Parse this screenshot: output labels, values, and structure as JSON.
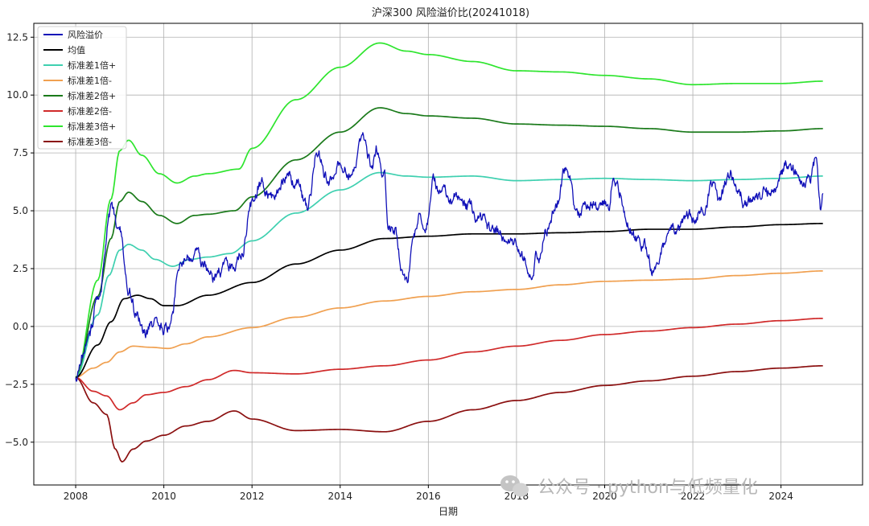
{
  "chart_data": {
    "type": "line",
    "title": "沪深300 风险溢价比(20241018)",
    "xlabel": "日期",
    "ylabel": "",
    "xlim": [
      2007.05,
      2025.85
    ],
    "ylim": [
      -6.85,
      13.1
    ],
    "x_ticks": [
      2008,
      2010,
      2012,
      2014,
      2016,
      2018,
      2020,
      2022,
      2024
    ],
    "x_tick_labels": [
      "2008",
      "2010",
      "2012",
      "2014",
      "2016",
      "2018",
      "2020",
      "2022",
      "2024"
    ],
    "y_ticks": [
      -5.0,
      -2.5,
      0.0,
      2.5,
      5.0,
      7.5,
      10.0,
      12.5
    ],
    "y_tick_labels": [
      "−5.0",
      "−2.5",
      "0.0",
      "2.5",
      "5.0",
      "7.5",
      "10.0",
      "12.5"
    ],
    "grid": true,
    "legend_position": "top-left",
    "series": [
      {
        "name": "风险溢价",
        "color": "#1010b8",
        "kind": "noisy",
        "points": [
          [
            2008.0,
            -2.2
          ],
          [
            2008.3,
            -0.5
          ],
          [
            2008.55,
            1.5
          ],
          [
            2008.8,
            4.9
          ],
          [
            2009.0,
            4.2
          ],
          [
            2009.2,
            1.8
          ],
          [
            2009.4,
            0.5
          ],
          [
            2009.55,
            -0.3
          ],
          [
            2009.75,
            0.0
          ],
          [
            2010.0,
            -0.2
          ],
          [
            2010.2,
            0.4
          ],
          [
            2010.35,
            2.7
          ],
          [
            2010.55,
            3.1
          ],
          [
            2010.75,
            3.4
          ],
          [
            2010.9,
            2.8
          ],
          [
            2011.1,
            2.2
          ],
          [
            2011.5,
            2.7
          ],
          [
            2011.75,
            3.2
          ],
          [
            2012.0,
            5.3
          ],
          [
            2012.2,
            6.2
          ],
          [
            2012.5,
            5.6
          ],
          [
            2012.75,
            6.5
          ],
          [
            2013.0,
            6.2
          ],
          [
            2013.25,
            5.1
          ],
          [
            2013.5,
            7.5
          ],
          [
            2013.75,
            6.3
          ],
          [
            2014.0,
            7.2
          ],
          [
            2014.25,
            6.8
          ],
          [
            2014.5,
            8.2
          ],
          [
            2014.7,
            6.9
          ],
          [
            2014.85,
            7.6
          ],
          [
            2015.0,
            6.5
          ],
          [
            2015.1,
            4.5
          ],
          [
            2015.25,
            4.3
          ],
          [
            2015.4,
            2.5
          ],
          [
            2015.5,
            1.8
          ],
          [
            2015.65,
            3.4
          ],
          [
            2015.8,
            4.6
          ],
          [
            2015.9,
            4.0
          ],
          [
            2016.0,
            4.8
          ],
          [
            2016.1,
            6.3
          ],
          [
            2016.3,
            5.9
          ],
          [
            2016.6,
            5.6
          ],
          [
            2016.9,
            5.1
          ],
          [
            2017.2,
            4.5
          ],
          [
            2017.5,
            4.2
          ],
          [
            2017.8,
            3.6
          ],
          [
            2018.0,
            3.2
          ],
          [
            2018.2,
            2.8
          ],
          [
            2018.35,
            2.4
          ],
          [
            2018.5,
            3.2
          ],
          [
            2018.7,
            4.3
          ],
          [
            2018.9,
            5.2
          ],
          [
            2019.1,
            6.6
          ],
          [
            2019.2,
            5.9
          ],
          [
            2019.4,
            4.7
          ],
          [
            2019.6,
            5.1
          ],
          [
            2019.8,
            5.1
          ],
          [
            2020.0,
            5.3
          ],
          [
            2020.1,
            5.0
          ],
          [
            2020.2,
            6.7
          ],
          [
            2020.35,
            5.8
          ],
          [
            2020.5,
            4.8
          ],
          [
            2020.7,
            3.8
          ],
          [
            2020.9,
            3.5
          ],
          [
            2021.1,
            2.6
          ],
          [
            2021.3,
            3.4
          ],
          [
            2021.6,
            4.2
          ],
          [
            2021.9,
            4.8
          ],
          [
            2022.0,
            4.4
          ],
          [
            2022.2,
            5.2
          ],
          [
            2022.45,
            6.0
          ],
          [
            2022.6,
            5.4
          ],
          [
            2022.85,
            6.8
          ],
          [
            2023.0,
            5.8
          ],
          [
            2023.2,
            5.3
          ],
          [
            2023.45,
            5.4
          ],
          [
            2023.65,
            5.7
          ],
          [
            2023.85,
            6.1
          ],
          [
            2024.1,
            6.9
          ],
          [
            2024.25,
            6.6
          ],
          [
            2024.45,
            6.2
          ],
          [
            2024.65,
            6.4
          ],
          [
            2024.8,
            7.2
          ],
          [
            2024.9,
            5.1
          ],
          [
            2024.95,
            5.8
          ]
        ]
      },
      {
        "name": "均值",
        "color": "#000000",
        "kind": "smooth",
        "points": [
          [
            2008.0,
            -2.2
          ],
          [
            2008.5,
            -0.8
          ],
          [
            2008.8,
            0.2
          ],
          [
            2009.1,
            1.2
          ],
          [
            2009.4,
            1.35
          ],
          [
            2009.7,
            1.2
          ],
          [
            2010.0,
            0.9
          ],
          [
            2010.3,
            0.9
          ],
          [
            2011.0,
            1.35
          ],
          [
            2012.0,
            1.9
          ],
          [
            2013.0,
            2.7
          ],
          [
            2014.0,
            3.3
          ],
          [
            2015.0,
            3.8
          ],
          [
            2016.0,
            3.9
          ],
          [
            2017.0,
            4.0
          ],
          [
            2018.0,
            4.0
          ],
          [
            2019.0,
            4.05
          ],
          [
            2020.0,
            4.1
          ],
          [
            2021.0,
            4.2
          ],
          [
            2022.0,
            4.2
          ],
          [
            2023.0,
            4.3
          ],
          [
            2024.0,
            4.4
          ],
          [
            2024.95,
            4.45
          ]
        ]
      },
      {
        "name": "标准差1倍+",
        "color": "#3fd0b0",
        "kind": "smooth",
        "points": [
          [
            2008.0,
            -2.2
          ],
          [
            2008.5,
            0.5
          ],
          [
            2008.75,
            2.2
          ],
          [
            2009.0,
            3.3
          ],
          [
            2009.2,
            3.55
          ],
          [
            2009.5,
            3.3
          ],
          [
            2009.8,
            2.9
          ],
          [
            2010.2,
            2.6
          ],
          [
            2010.6,
            2.9
          ],
          [
            2011.0,
            3.0
          ],
          [
            2011.5,
            3.15
          ],
          [
            2012.0,
            3.7
          ],
          [
            2013.0,
            4.9
          ],
          [
            2014.0,
            5.9
          ],
          [
            2014.9,
            6.65
          ],
          [
            2015.5,
            6.5
          ],
          [
            2016.0,
            6.45
          ],
          [
            2017.0,
            6.5
          ],
          [
            2018.0,
            6.3
          ],
          [
            2019.0,
            6.35
          ],
          [
            2020.0,
            6.4
          ],
          [
            2021.0,
            6.35
          ],
          [
            2022.0,
            6.3
          ],
          [
            2023.0,
            6.35
          ],
          [
            2024.0,
            6.4
          ],
          [
            2024.95,
            6.5
          ]
        ]
      },
      {
        "name": "标准差1倍-",
        "color": "#f0a050",
        "kind": "smooth",
        "points": [
          [
            2008.0,
            -2.2
          ],
          [
            2008.4,
            -1.8
          ],
          [
            2008.7,
            -1.55
          ],
          [
            2009.0,
            -1.1
          ],
          [
            2009.3,
            -0.85
          ],
          [
            2009.7,
            -0.9
          ],
          [
            2010.1,
            -0.95
          ],
          [
            2010.5,
            -0.75
          ],
          [
            2011.0,
            -0.45
          ],
          [
            2012.0,
            -0.05
          ],
          [
            2013.0,
            0.4
          ],
          [
            2014.0,
            0.8
          ],
          [
            2015.0,
            1.1
          ],
          [
            2016.0,
            1.3
          ],
          [
            2017.0,
            1.5
          ],
          [
            2018.0,
            1.6
          ],
          [
            2019.0,
            1.8
          ],
          [
            2020.0,
            1.95
          ],
          [
            2021.0,
            2.0
          ],
          [
            2022.0,
            2.05
          ],
          [
            2023.0,
            2.2
          ],
          [
            2024.0,
            2.3
          ],
          [
            2024.95,
            2.4
          ]
        ]
      },
      {
        "name": "标准差2倍+",
        "color": "#1a7a1a",
        "kind": "smooth",
        "points": [
          [
            2008.0,
            -2.2
          ],
          [
            2008.5,
            1.3
          ],
          [
            2008.8,
            3.8
          ],
          [
            2009.0,
            5.4
          ],
          [
            2009.2,
            5.8
          ],
          [
            2009.5,
            5.4
          ],
          [
            2009.9,
            4.8
          ],
          [
            2010.3,
            4.45
          ],
          [
            2010.7,
            4.8
          ],
          [
            2011.0,
            4.85
          ],
          [
            2011.6,
            5.0
          ],
          [
            2012.0,
            5.6
          ],
          [
            2013.0,
            7.2
          ],
          [
            2014.0,
            8.4
          ],
          [
            2014.9,
            9.45
          ],
          [
            2015.5,
            9.2
          ],
          [
            2016.0,
            9.1
          ],
          [
            2017.0,
            9.0
          ],
          [
            2018.0,
            8.75
          ],
          [
            2019.0,
            8.7
          ],
          [
            2020.0,
            8.65
          ],
          [
            2021.0,
            8.55
          ],
          [
            2022.0,
            8.4
          ],
          [
            2023.0,
            8.4
          ],
          [
            2024.0,
            8.45
          ],
          [
            2024.95,
            8.55
          ]
        ]
      },
      {
        "name": "标准差2倍-",
        "color": "#d02a2a",
        "kind": "smooth",
        "points": [
          [
            2008.0,
            -2.2
          ],
          [
            2008.4,
            -2.8
          ],
          [
            2008.7,
            -3.0
          ],
          [
            2009.0,
            -3.6
          ],
          [
            2009.3,
            -3.3
          ],
          [
            2009.6,
            -2.95
          ],
          [
            2010.0,
            -2.85
          ],
          [
            2010.5,
            -2.6
          ],
          [
            2011.0,
            -2.3
          ],
          [
            2011.6,
            -1.9
          ],
          [
            2012.0,
            -2.0
          ],
          [
            2013.0,
            -2.05
          ],
          [
            2014.0,
            -1.85
          ],
          [
            2015.0,
            -1.7
          ],
          [
            2016.0,
            -1.45
          ],
          [
            2017.0,
            -1.1
          ],
          [
            2018.0,
            -0.85
          ],
          [
            2019.0,
            -0.6
          ],
          [
            2020.0,
            -0.35
          ],
          [
            2021.0,
            -0.2
          ],
          [
            2022.0,
            -0.05
          ],
          [
            2023.0,
            0.1
          ],
          [
            2024.0,
            0.25
          ],
          [
            2024.95,
            0.35
          ]
        ]
      },
      {
        "name": "标准差3倍+",
        "color": "#2ee52e",
        "kind": "smooth",
        "points": [
          [
            2008.0,
            -2.2
          ],
          [
            2008.5,
            2.0
          ],
          [
            2008.8,
            5.5
          ],
          [
            2009.0,
            7.6
          ],
          [
            2009.2,
            8.05
          ],
          [
            2009.5,
            7.4
          ],
          [
            2009.9,
            6.6
          ],
          [
            2010.3,
            6.2
          ],
          [
            2010.7,
            6.5
          ],
          [
            2011.0,
            6.6
          ],
          [
            2011.7,
            6.8
          ],
          [
            2012.0,
            7.7
          ],
          [
            2013.0,
            9.8
          ],
          [
            2014.0,
            11.2
          ],
          [
            2014.9,
            12.25
          ],
          [
            2015.5,
            11.9
          ],
          [
            2016.0,
            11.75
          ],
          [
            2017.0,
            11.45
          ],
          [
            2018.0,
            11.05
          ],
          [
            2019.0,
            11.0
          ],
          [
            2020.0,
            10.85
          ],
          [
            2021.0,
            10.7
          ],
          [
            2022.0,
            10.45
          ],
          [
            2023.0,
            10.5
          ],
          [
            2024.0,
            10.5
          ],
          [
            2024.95,
            10.6
          ]
        ]
      },
      {
        "name": "标准差3倍-",
        "color": "#8b1010",
        "kind": "smooth",
        "points": [
          [
            2008.0,
            -2.2
          ],
          [
            2008.4,
            -3.3
          ],
          [
            2008.7,
            -3.8
          ],
          [
            2008.9,
            -5.3
          ],
          [
            2009.05,
            -5.85
          ],
          [
            2009.3,
            -5.3
          ],
          [
            2009.6,
            -4.95
          ],
          [
            2010.0,
            -4.7
          ],
          [
            2010.5,
            -4.3
          ],
          [
            2011.0,
            -4.1
          ],
          [
            2011.6,
            -3.65
          ],
          [
            2012.0,
            -4.0
          ],
          [
            2013.0,
            -4.5
          ],
          [
            2014.0,
            -4.45
          ],
          [
            2015.0,
            -4.55
          ],
          [
            2016.0,
            -4.1
          ],
          [
            2017.0,
            -3.6
          ],
          [
            2018.0,
            -3.2
          ],
          [
            2019.0,
            -2.85
          ],
          [
            2020.0,
            -2.55
          ],
          [
            2021.0,
            -2.35
          ],
          [
            2022.0,
            -2.15
          ],
          [
            2023.0,
            -1.95
          ],
          [
            2024.0,
            -1.8
          ],
          [
            2024.95,
            -1.7
          ]
        ]
      }
    ]
  },
  "watermark": {
    "text": "公众号 · python与低频量化",
    "icon": "wechat-bubble-icon"
  }
}
